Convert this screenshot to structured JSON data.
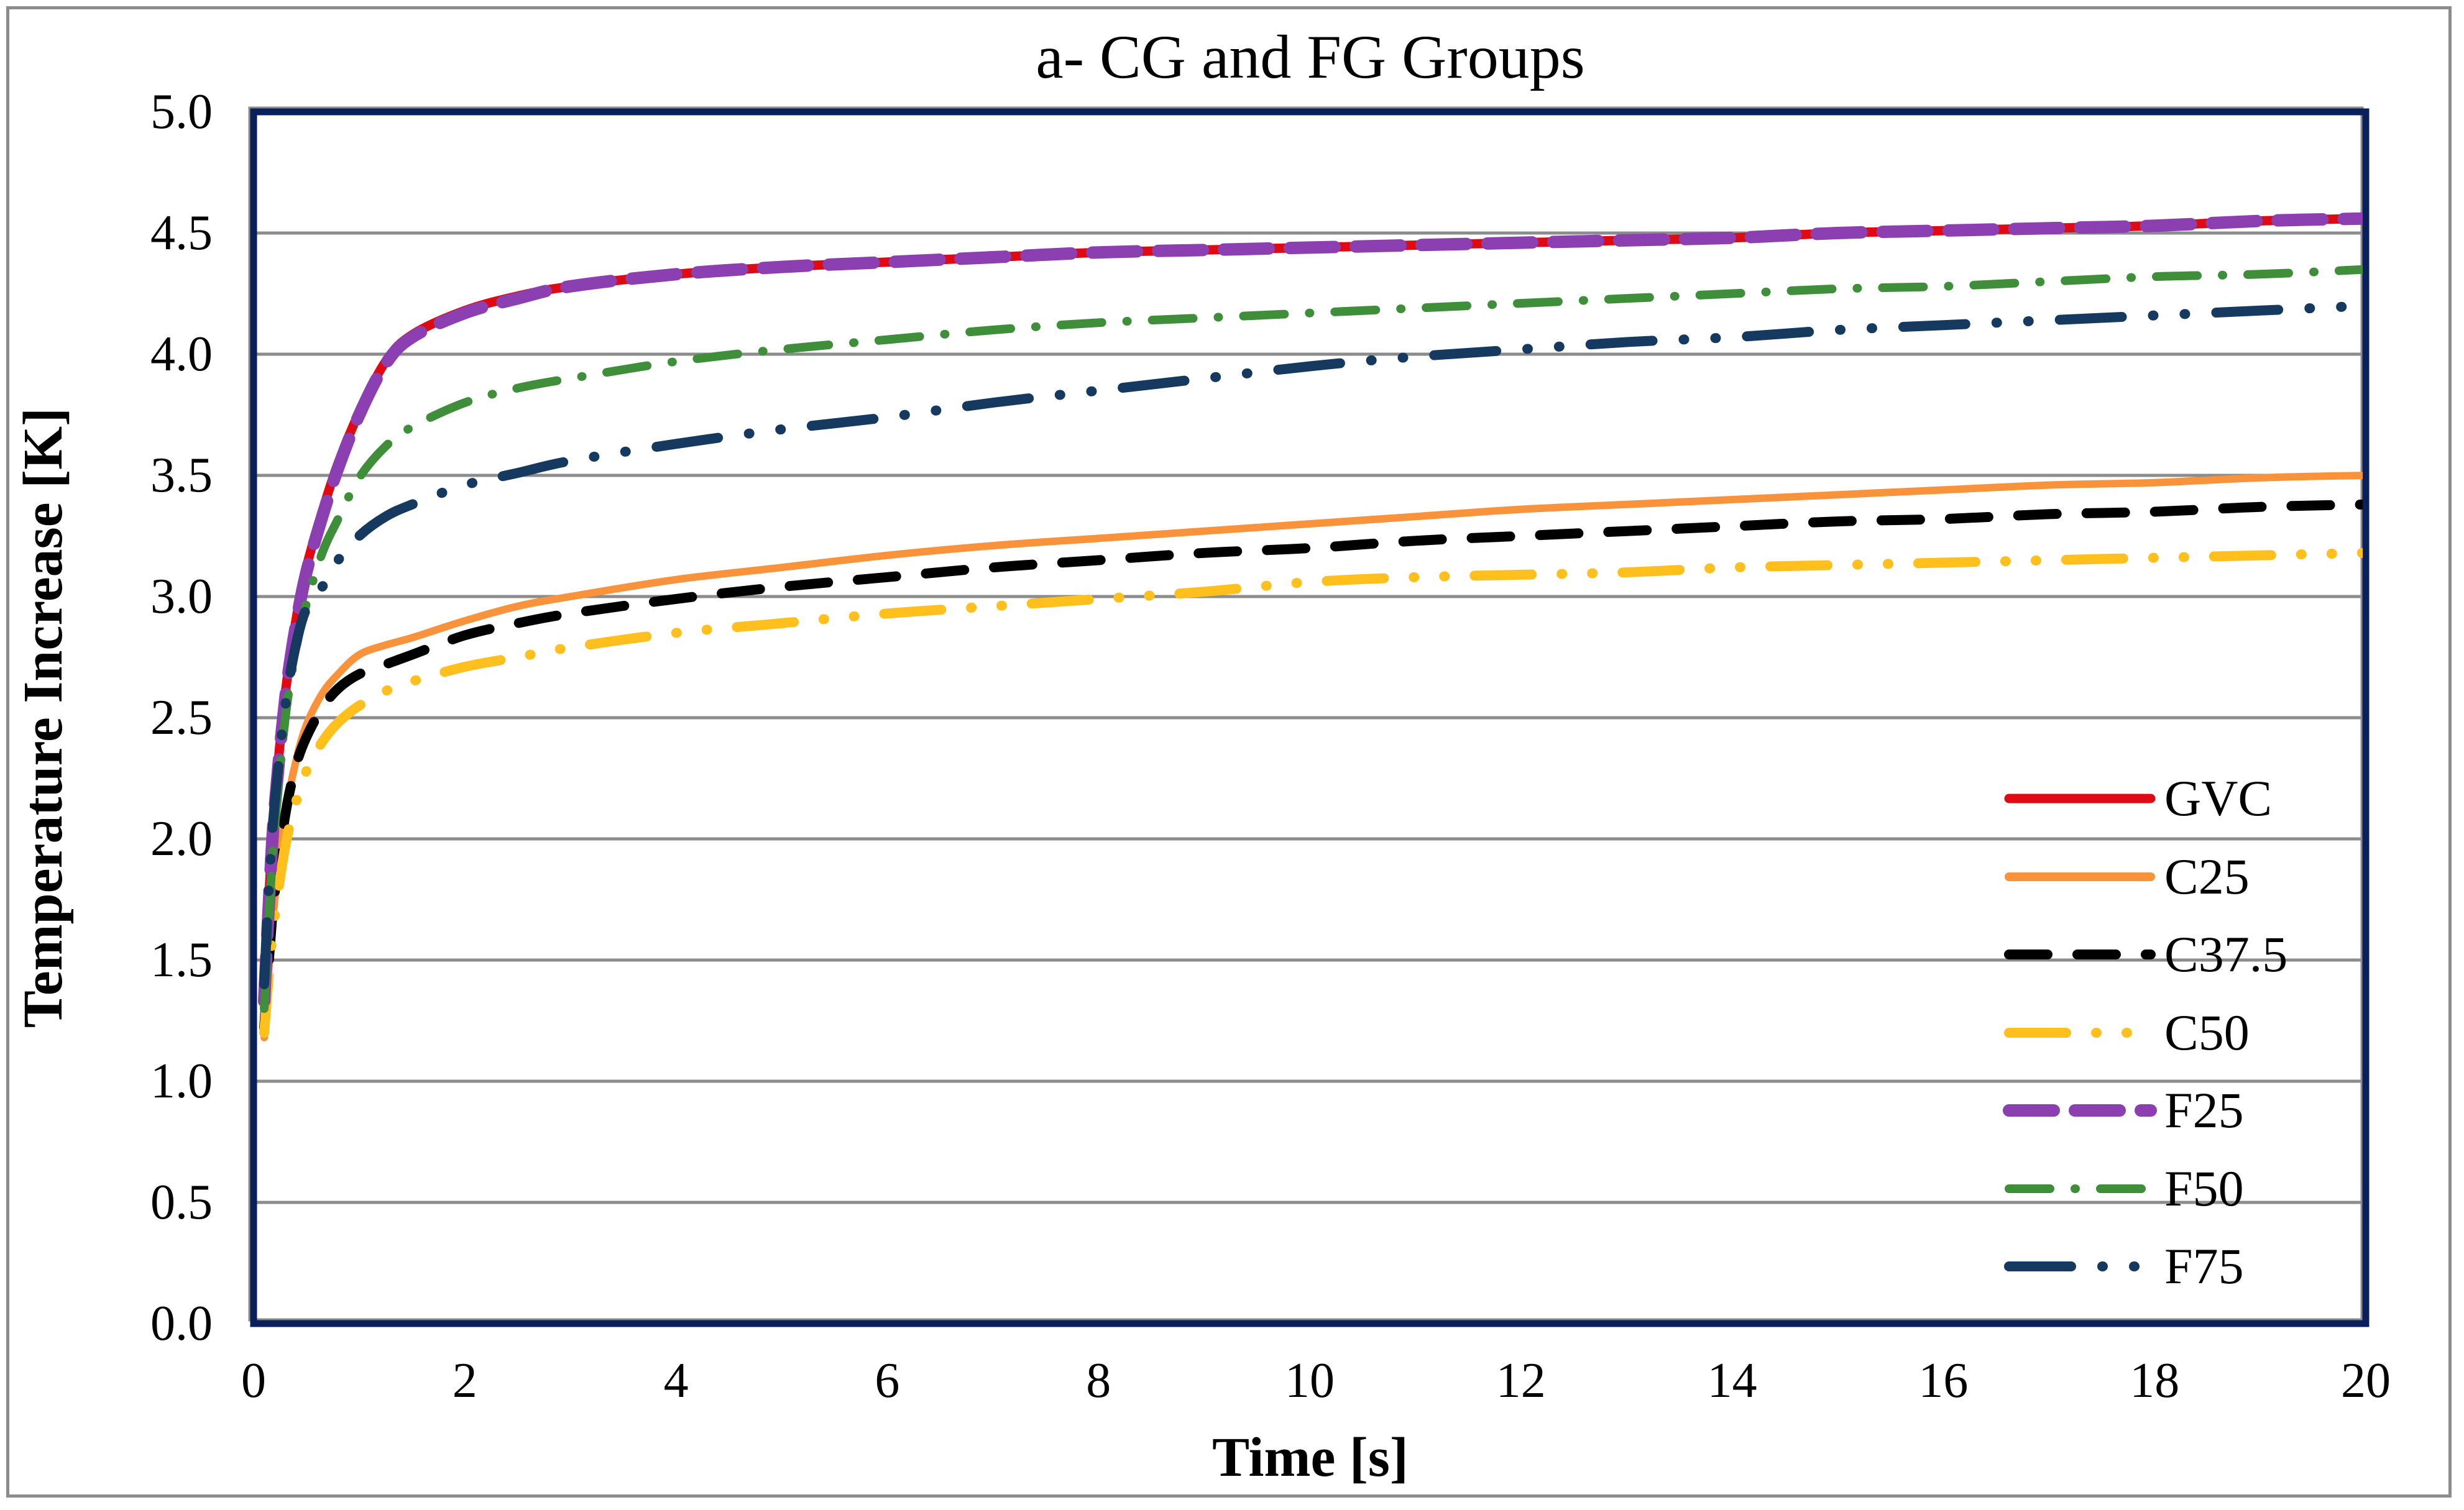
{
  "figure": {
    "title": "a- CG and FG Groups"
  },
  "chart_data": {
    "type": "line",
    "title": "a- CG and FG Groups",
    "xlabel": "Time [s]",
    "ylabel": "Temperature Increase [K]",
    "xlim": [
      0,
      20
    ],
    "ylim": [
      0.0,
      5.0
    ],
    "x_ticks": [
      "0",
      "2",
      "4",
      "6",
      "8",
      "10",
      "12",
      "14",
      "16",
      "18",
      "20"
    ],
    "y_ticks": [
      "0.0",
      "0.5",
      "1.0",
      "1.5",
      "2.0",
      "2.5",
      "3.0",
      "3.5",
      "4.0",
      "4.5",
      "5.0"
    ],
    "grid": "horizontal-major",
    "legend_position": "inside-right",
    "t": [
      0.1,
      0.15,
      0.2,
      0.3,
      0.4,
      0.5,
      0.65,
      0.8,
      1,
      1.25,
      1.5,
      2,
      2.5,
      3,
      4,
      5,
      6,
      7,
      8,
      9,
      10,
      11,
      12,
      13,
      14,
      15,
      16,
      17,
      18,
      19,
      20
    ],
    "series": [
      {
        "name": "GVC",
        "color": "#E00A12",
        "style": "solid",
        "width": 15,
        "dash": null,
        "values": [
          1.35,
          1.8,
          2.15,
          2.6,
          2.9,
          3.12,
          3.35,
          3.55,
          3.76,
          3.97,
          4.08,
          4.18,
          4.24,
          4.28,
          4.33,
          4.36,
          4.38,
          4.4,
          4.42,
          4.43,
          4.44,
          4.45,
          4.46,
          4.47,
          4.48,
          4.5,
          4.51,
          4.52,
          4.53,
          4.55,
          4.56
        ]
      },
      {
        "name": "C25",
        "color": "#F8933C",
        "style": "solid",
        "width": 12,
        "dash": null,
        "values": [
          1.18,
          1.5,
          1.75,
          2.1,
          2.32,
          2.47,
          2.6,
          2.68,
          2.76,
          2.8,
          2.83,
          2.9,
          2.96,
          3.0,
          3.07,
          3.12,
          3.17,
          3.21,
          3.24,
          3.27,
          3.3,
          3.33,
          3.36,
          3.38,
          3.4,
          3.42,
          3.44,
          3.46,
          3.47,
          3.49,
          3.5
        ]
      },
      {
        "name": "C37.5",
        "color": "#000000",
        "style": "dash",
        "width": 16,
        "dash": [
          62,
          48
        ],
        "values": [
          1.22,
          1.53,
          1.78,
          2.1,
          2.3,
          2.42,
          2.54,
          2.62,
          2.68,
          2.72,
          2.76,
          2.84,
          2.89,
          2.93,
          2.99,
          3.04,
          3.08,
          3.12,
          3.15,
          3.18,
          3.2,
          3.23,
          3.25,
          3.27,
          3.29,
          3.31,
          3.32,
          3.34,
          3.35,
          3.37,
          3.38
        ]
      },
      {
        "name": "C50",
        "color": "#FFC01E",
        "style": "long-dash-dot-dot",
        "width": 16,
        "dash": [
          92,
          48,
          1,
          48,
          1,
          48
        ],
        "values": [
          1.2,
          1.47,
          1.68,
          1.97,
          2.15,
          2.28,
          2.4,
          2.48,
          2.55,
          2.61,
          2.65,
          2.71,
          2.75,
          2.79,
          2.85,
          2.89,
          2.93,
          2.96,
          2.99,
          3.02,
          3.06,
          3.08,
          3.09,
          3.1,
          3.12,
          3.13,
          3.14,
          3.15,
          3.16,
          3.17,
          3.18
        ]
      },
      {
        "name": "F25",
        "color": "#8B3FB0",
        "style": "dash",
        "width": 20,
        "dash": [
          72,
          34
        ],
        "values": [
          1.33,
          1.78,
          2.13,
          2.58,
          2.88,
          3.1,
          3.33,
          3.53,
          3.75,
          3.96,
          4.07,
          4.17,
          4.23,
          4.28,
          4.33,
          4.36,
          4.38,
          4.4,
          4.42,
          4.43,
          4.44,
          4.45,
          4.46,
          4.47,
          4.48,
          4.5,
          4.51,
          4.52,
          4.53,
          4.55,
          4.56
        ]
      },
      {
        "name": "F50",
        "color": "#3F8F3A",
        "style": "dash-dot",
        "width": 14,
        "dash": [
          66,
          40,
          1,
          40
        ],
        "values": [
          1.3,
          1.72,
          2.05,
          2.5,
          2.78,
          2.97,
          3.18,
          3.32,
          3.49,
          3.62,
          3.7,
          3.8,
          3.86,
          3.9,
          3.97,
          4.02,
          4.06,
          4.1,
          4.13,
          4.15,
          4.17,
          4.19,
          4.21,
          4.23,
          4.25,
          4.27,
          4.28,
          4.3,
          4.32,
          4.33,
          4.35
        ]
      },
      {
        "name": "F75",
        "color": "#16395F",
        "style": "long-dash-dot-dot",
        "width": 16,
        "dash": [
          100,
          50,
          1,
          50,
          1,
          50
        ],
        "values": [
          1.4,
          1.85,
          2.15,
          2.55,
          2.8,
          2.95,
          3.04,
          3.15,
          3.25,
          3.33,
          3.38,
          3.46,
          3.51,
          3.56,
          3.63,
          3.69,
          3.74,
          3.8,
          3.85,
          3.9,
          3.95,
          3.99,
          4.02,
          4.05,
          4.07,
          4.1,
          4.12,
          4.14,
          4.16,
          4.18,
          4.2
        ]
      }
    ]
  },
  "colors": {
    "background": "#FFFFFF",
    "plot_border": "#0A205A",
    "gridline": "#8C8C8C",
    "outer_border": "#8C8C8C",
    "text": "#000000"
  }
}
